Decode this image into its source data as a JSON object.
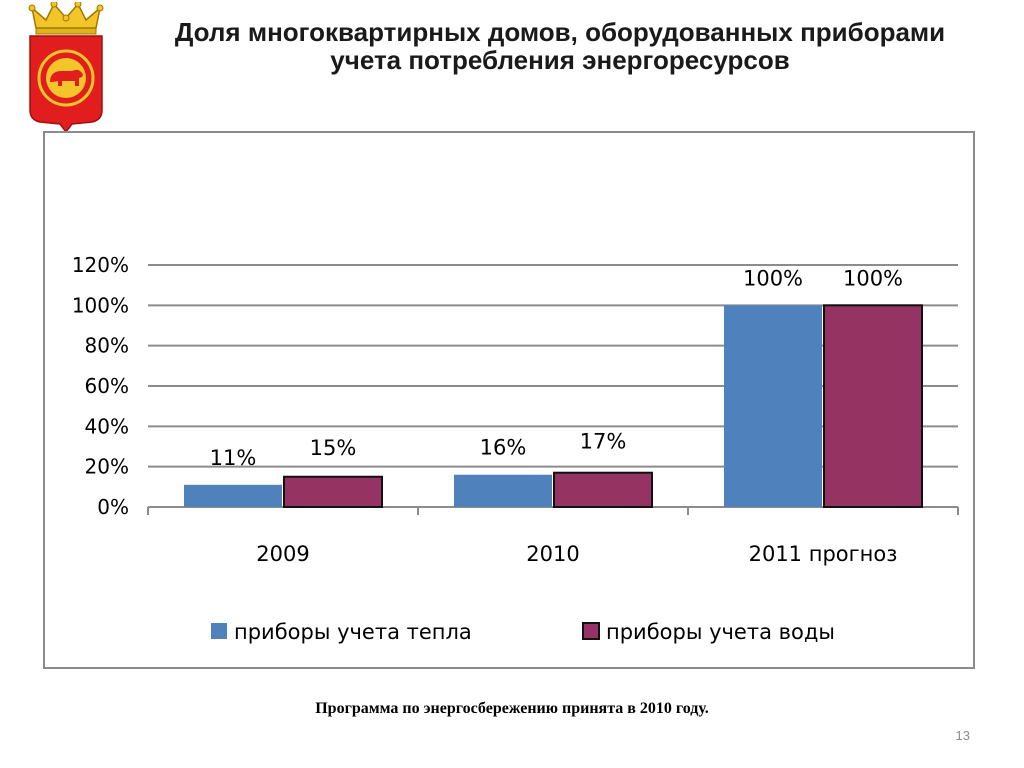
{
  "slide": {
    "title_line1": "Доля многоквартирных домов, оборудованных приборами",
    "title_line2": "учета потребления энергоресурсов",
    "footnote": "Программа по энергосбережению принята в 2010 году.",
    "page_number": "13",
    "emblem_icon": "coat-of-arms-bear-icon"
  },
  "chart_data": {
    "type": "bar",
    "categories": [
      "2009",
      "2010",
      "2011 прогноз"
    ],
    "series": [
      {
        "name": "приборы учета тепла",
        "values": [
          11,
          16,
          100
        ],
        "labels": [
          "11%",
          "16%",
          "100%"
        ],
        "color": "#4f81bd"
      },
      {
        "name": "приборы учета воды",
        "values": [
          15,
          17,
          100
        ],
        "labels": [
          "15%",
          "17%",
          "100%"
        ],
        "color": "#953462"
      }
    ],
    "ylim": [
      0,
      120
    ],
    "yticks": [
      0,
      20,
      40,
      60,
      80,
      100,
      120
    ],
    "ytick_labels": [
      "0%",
      "20%",
      "40%",
      "60%",
      "80%",
      "100%",
      "120%"
    ],
    "grid": true,
    "legend": "bottom",
    "title": "",
    "xlabel": "",
    "ylabel": ""
  }
}
